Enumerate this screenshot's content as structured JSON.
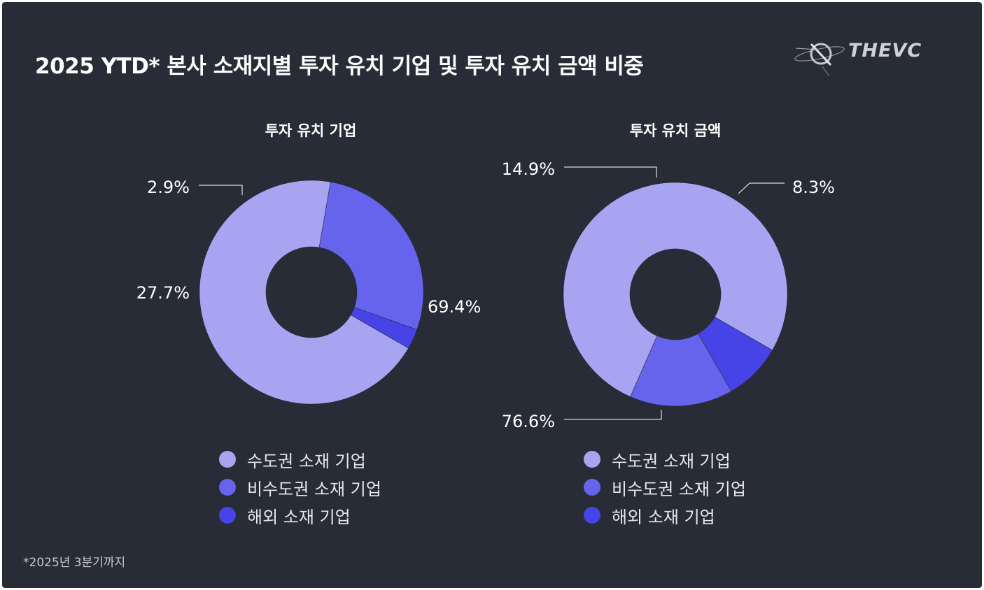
{
  "title": "2025 YTD* 본사 소재지별 투자 유치 기업 및 투자 유치 금액 비중",
  "logo_text": "THEVC",
  "footnote": "*2025년 3분기까지",
  "colors": {
    "background": "#282c36",
    "capital": "#a7a5f2",
    "non_capital": "#6663ec",
    "overseas": "#4644e6"
  },
  "chart_data": [
    {
      "type": "pie",
      "title": "투자 유치 기업",
      "slices": [
        {
          "name": "수도권 소재 기업",
          "value": 69.4,
          "label": "69.4%",
          "color": "#a7a5f2"
        },
        {
          "name": "비수도권 소재 기업",
          "value": 27.7,
          "label": "27.7%",
          "color": "#6663ec"
        },
        {
          "name": "해외 소재 기업",
          "value": 2.9,
          "label": "2.9%",
          "color": "#4644e6"
        }
      ],
      "legend": [
        "수도권 소재 기업",
        "비수도권 소재 기업",
        "해외 소재 기업"
      ],
      "legend_position": "bottom"
    },
    {
      "type": "pie",
      "title": "투자 유치 금액",
      "slices": [
        {
          "name": "수도권 소재 기업",
          "value": 76.6,
          "label": "76.6%",
          "color": "#a7a5f2"
        },
        {
          "name": "비수도권 소재 기업",
          "value": 14.9,
          "label": "14.9%",
          "color": "#6663ec"
        },
        {
          "name": "해외 소재 기업",
          "value": 8.3,
          "label": "8.3%",
          "color": "#4644e6"
        }
      ],
      "legend": [
        "수도권 소재 기업",
        "비수도권 소재 기업",
        "해외 소재 기업"
      ],
      "legend_position": "bottom"
    }
  ]
}
